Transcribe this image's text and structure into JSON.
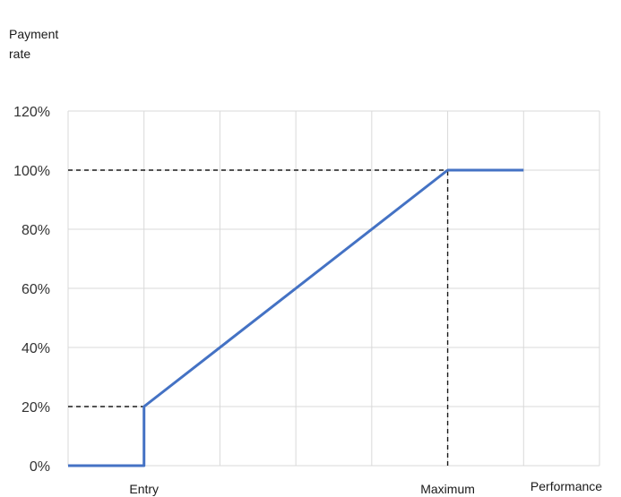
{
  "chart_data": {
    "type": "line",
    "ylabel_lines": [
      "Payment",
      "rate"
    ],
    "xlabel": "Performance",
    "x_markers": [
      {
        "label": "Entry",
        "x": 1
      },
      {
        "label": "Maximum",
        "x": 5
      }
    ],
    "xlim": [
      0,
      7
    ],
    "ylim": [
      0,
      120
    ],
    "y_ticks": [
      "0%",
      "20%",
      "40%",
      "60%",
      "80%",
      "100%",
      "120%"
    ],
    "grid": true,
    "series": [
      {
        "color": "#4472C4",
        "points": [
          [
            0,
            0
          ],
          [
            1,
            0
          ],
          [
            1,
            20
          ],
          [
            5,
            100
          ],
          [
            6,
            100
          ]
        ]
      }
    ],
    "reference_lines": [
      {
        "points": [
          [
            0,
            20
          ],
          [
            1,
            20
          ]
        ]
      },
      {
        "points": [
          [
            1,
            0
          ],
          [
            1,
            20
          ]
        ]
      },
      {
        "points": [
          [
            0,
            100
          ],
          [
            5,
            100
          ]
        ]
      },
      {
        "points": [
          [
            5,
            0
          ],
          [
            5,
            100
          ]
        ]
      }
    ]
  }
}
